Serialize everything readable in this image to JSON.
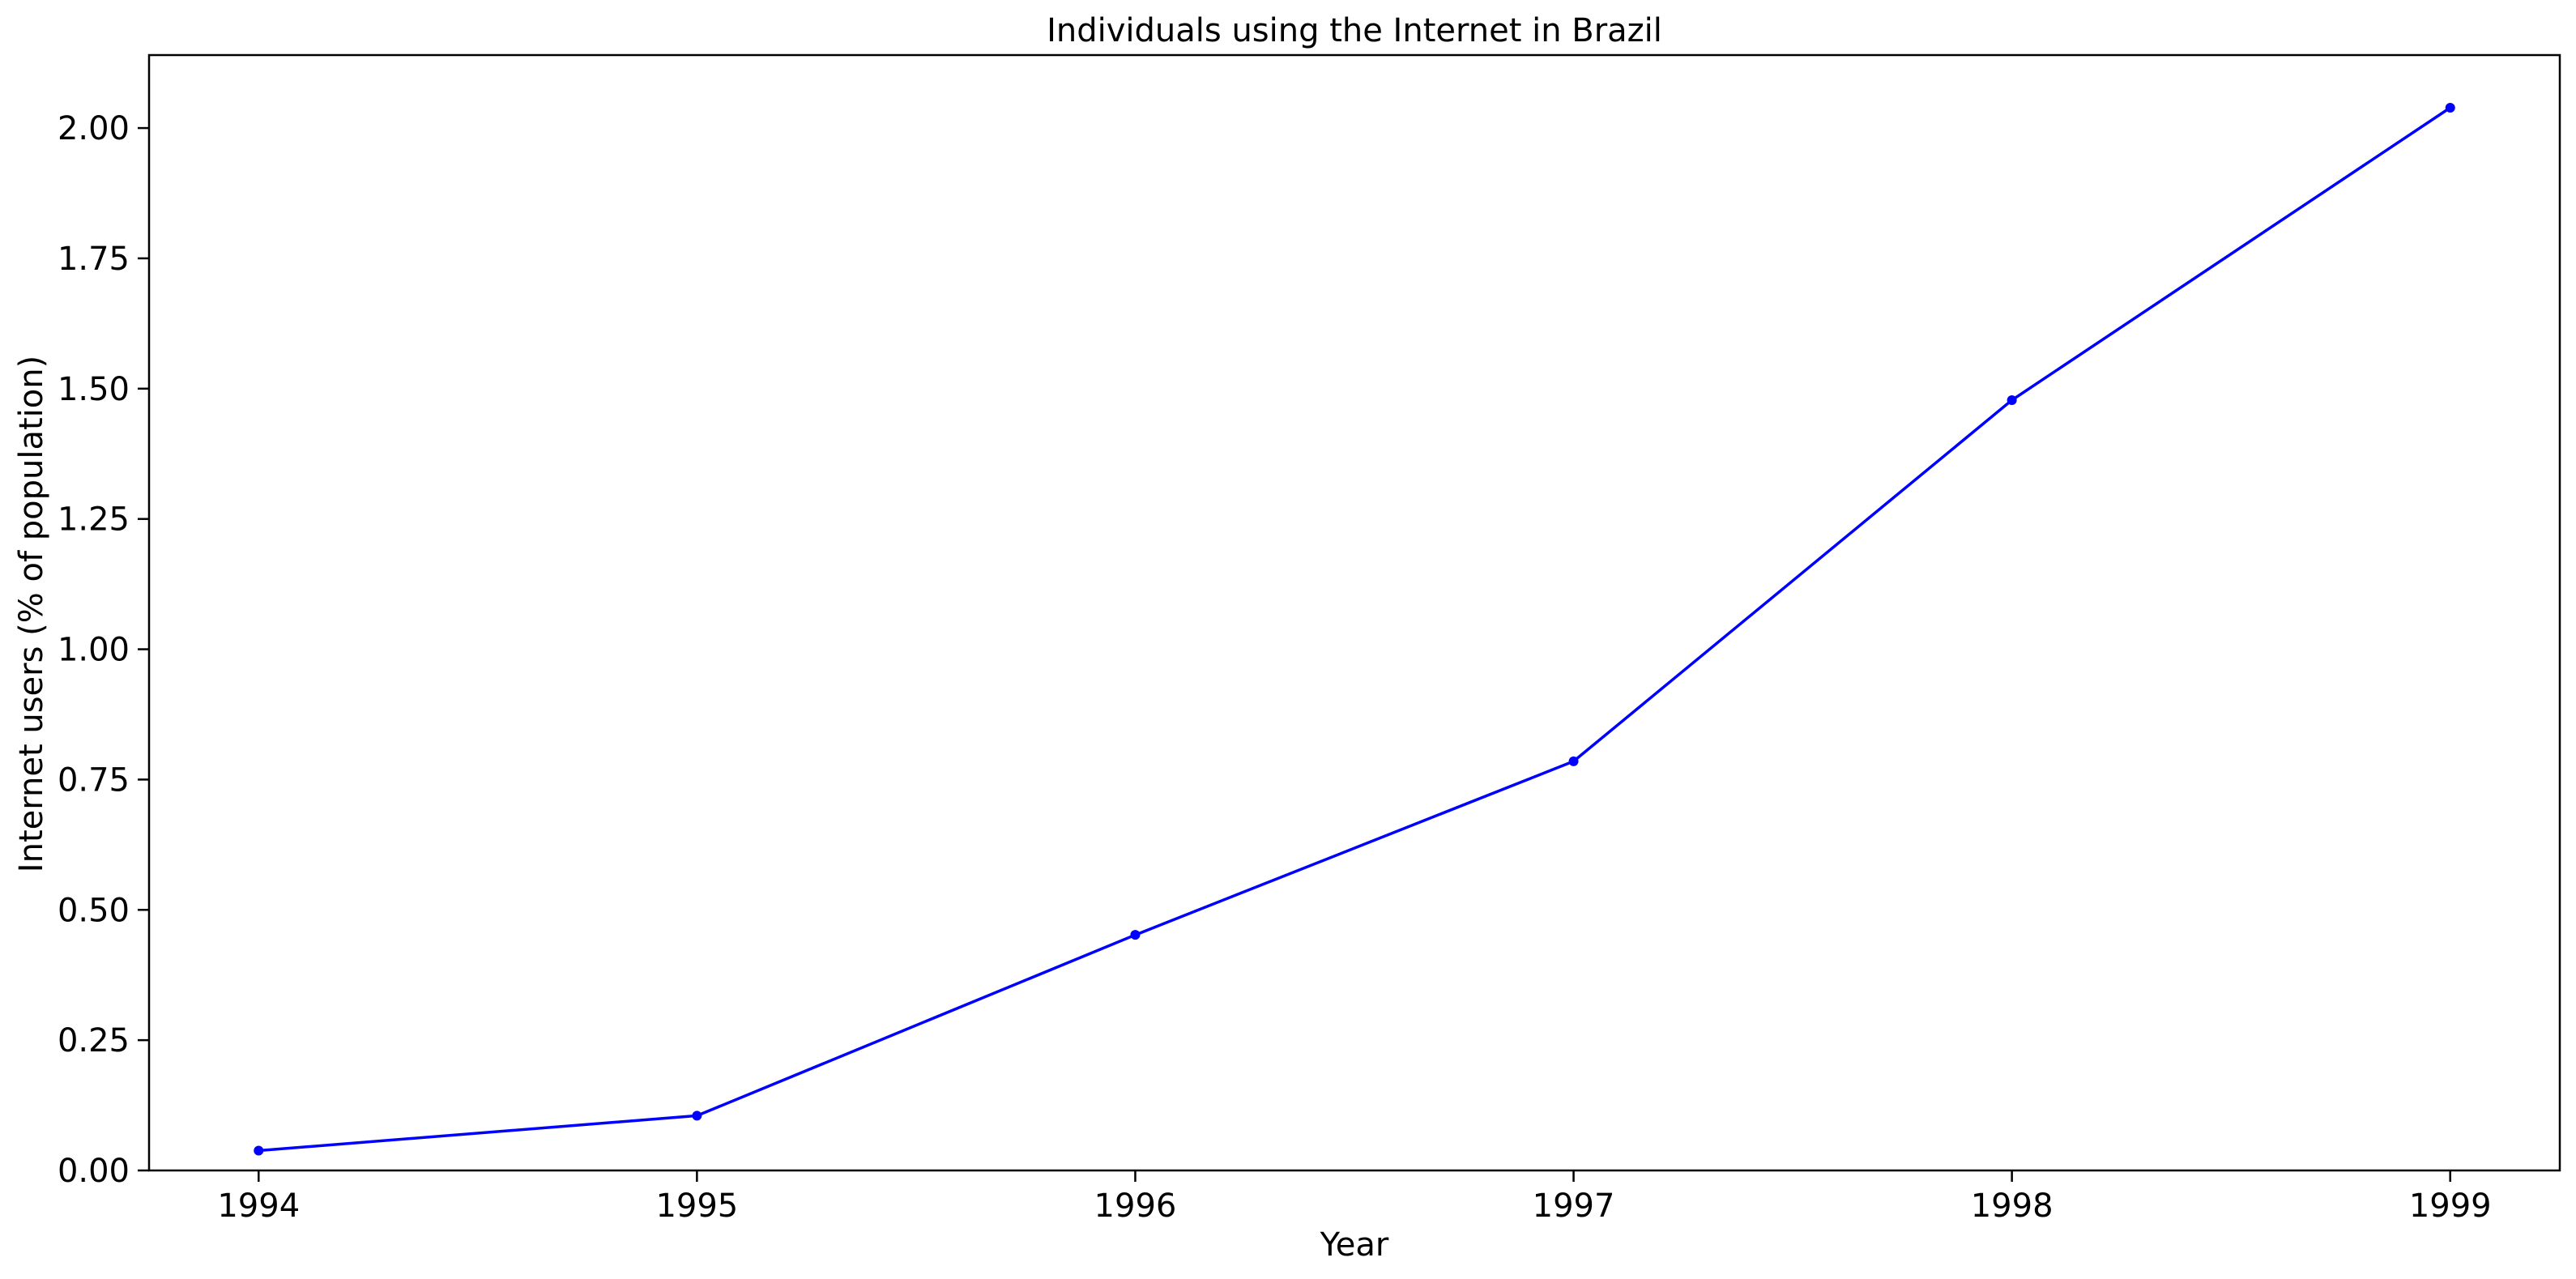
{
  "chart_data": {
    "type": "line",
    "title": "Individuals using the Internet in Brazil",
    "xlabel": "Year",
    "ylabel": "Internet users (% of population)",
    "x": [
      1994,
      1995,
      1996,
      1997,
      1998,
      1999
    ],
    "x_tick_labels": [
      "1994",
      "1995",
      "1996",
      "1997",
      "1998",
      "1999"
    ],
    "xlim": [
      1993.75,
      1999.25
    ],
    "ylim": [
      0,
      2.14
    ],
    "y_ticks": [
      0,
      0.25,
      0.5,
      0.75,
      1.0,
      1.25,
      1.5,
      1.75,
      2.0
    ],
    "y_tick_labels": [
      "0.00",
      "0.25",
      "0.50",
      "0.75",
      "1.00",
      "1.25",
      "1.50",
      "1.75",
      "2.00"
    ],
    "grid": false,
    "series": [
      {
        "values": [
          0.038,
          0.105,
          0.452,
          0.785,
          1.478,
          2.039
        ],
        "color": "#0000ff",
        "marker": "circle"
      }
    ]
  }
}
